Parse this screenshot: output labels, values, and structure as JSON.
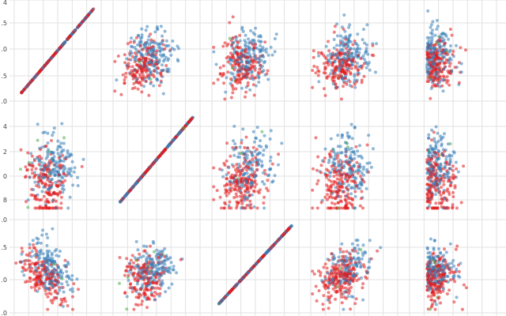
{
  "chart_data": {
    "type": "scatter",
    "subtype": "scatter-matrix",
    "grid": true,
    "legend": "none",
    "series_colors": [
      "#e41a1c",
      "#377eb8",
      "#4daf4a"
    ],
    "point_opacity": 0.55,
    "diagonal": "identity-line",
    "rows": [
      {
        "tick_labels": [
          "4",
          ".5",
          ".0",
          ".5",
          ".0"
        ]
      },
      {
        "tick_labels": [
          "4",
          "2",
          "0",
          "8"
        ]
      },
      {
        "tick_labels": [
          ".0",
          ".5",
          ".0"
        ]
      },
      {
        "tick_labels": [
          ".0"
        ]
      }
    ],
    "points_per_panel": 340
  }
}
